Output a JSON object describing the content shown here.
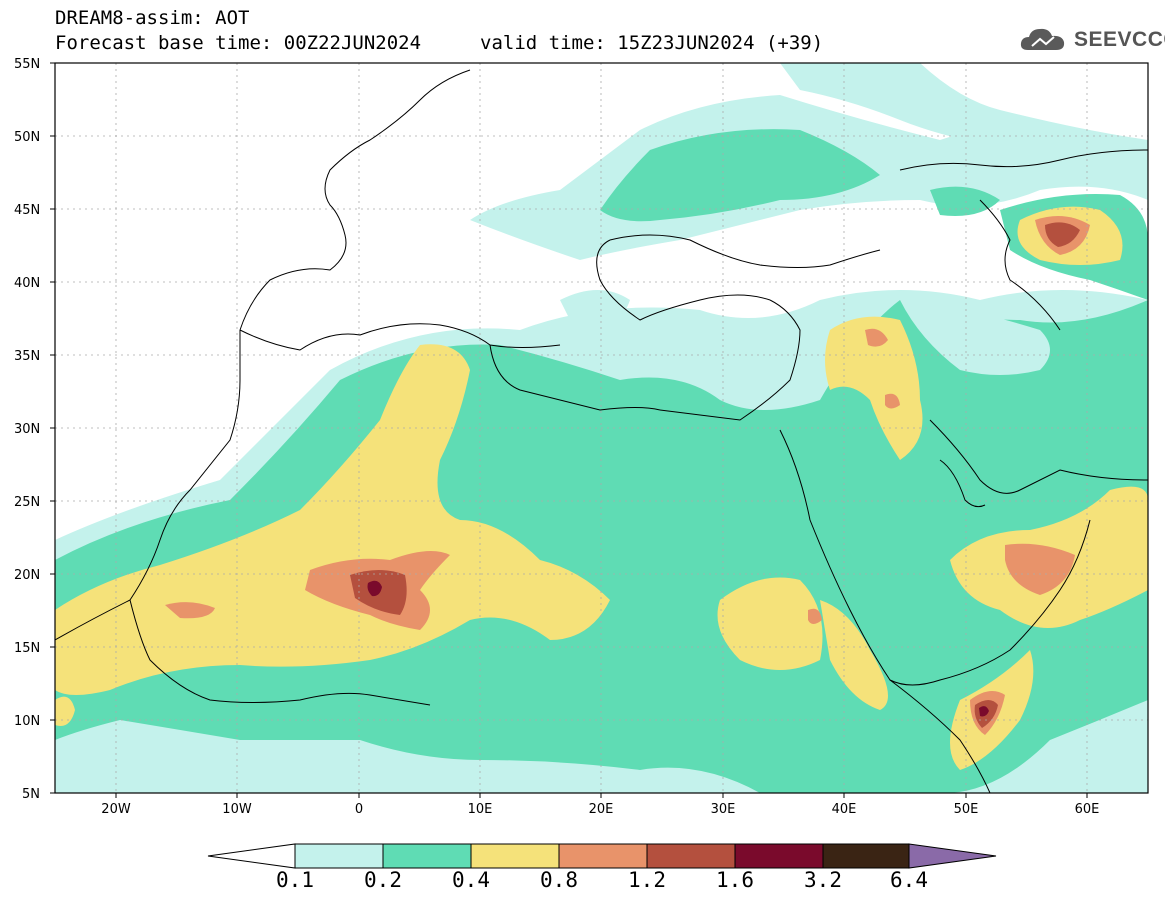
{
  "header": {
    "title": "DREAM8-assim: AOT",
    "base_time": "Forecast base time: 00Z22JUN2024",
    "valid_time": "valid time: 15Z23JUN2024 (+39)"
  },
  "logo": {
    "text": "SEEVCCC",
    "icon": "cloud-icon"
  },
  "axes": {
    "lat_labels": [
      "55N",
      "50N",
      "45N",
      "40N",
      "35N",
      "30N",
      "25N",
      "20N",
      "15N",
      "10N",
      "5N"
    ],
    "lon_labels": [
      "20W",
      "10W",
      "0",
      "10E",
      "20E",
      "30E",
      "40E",
      "50E",
      "60E"
    ]
  },
  "colorbar": {
    "labels": [
      "0.1",
      "0.2",
      "0.4",
      "0.8",
      "1.2",
      "1.6",
      "3.2",
      "6.4"
    ],
    "colors": [
      "#c4f2ec",
      "#5fdcb4",
      "#f5e27a",
      "#e8936a",
      "#b4503e",
      "#7a0a2c",
      "#3a2414"
    ],
    "over_color": "#8a6aa8",
    "under_color": "#ffffff"
  },
  "colors": {
    "frame": "#000000",
    "land_border": "#000000",
    "grid": "#aaaaaa"
  }
}
